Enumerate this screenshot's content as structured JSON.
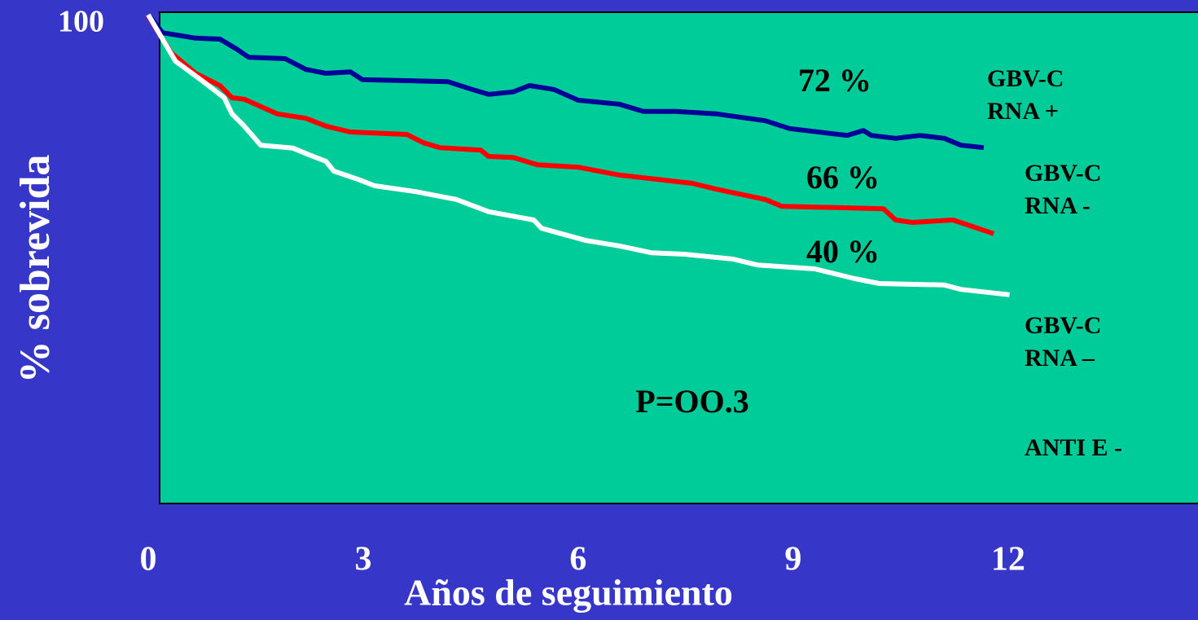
{
  "chart_data": {
    "type": "line",
    "xlabel": "Años de seguimiento",
    "ylabel": "% sobrevida",
    "xlim": [
      0,
      14.65
    ],
    "xticks": [
      0,
      3,
      6,
      9,
      12
    ],
    "ylim": [
      0,
      100
    ],
    "yticks": [
      100
    ],
    "grid": false,
    "annotations": [
      "72 %",
      "66 %",
      "40 %",
      "P=OO.3",
      "ANTI E -"
    ],
    "series": [
      {
        "name": "GBV-C\nRNA +",
        "color": "#000099",
        "x": [
          0,
          0.2,
          0.66,
          1.0,
          1.23,
          1.4,
          1.91,
          2.2,
          2.48,
          2.82,
          2.99,
          4.18,
          4.52,
          4.75,
          5.09,
          5.32,
          5.66,
          6.0,
          6.57,
          6.91,
          7.36,
          7.93,
          8.61,
          8.95,
          9.75,
          9.98,
          10.09,
          10.43,
          10.77,
          11.11,
          11.34,
          11.66
        ],
        "values": [
          100,
          96.3,
          95.2,
          95.0,
          93.0,
          91.3,
          91.0,
          88.8,
          88.0,
          88.3,
          86.7,
          86.3,
          84.7,
          83.7,
          84.2,
          85.5,
          84.7,
          82.5,
          81.7,
          80.2,
          80.2,
          79.7,
          78.3,
          76.7,
          75.3,
          76.3,
          75.3,
          74.7,
          75.3,
          74.7,
          73.3,
          72.8
        ]
      },
      {
        "name": "GBV-C\nRNA -",
        "color": "#ff0000",
        "x": [
          0,
          0.32,
          0.66,
          1.0,
          1.17,
          1.34,
          1.8,
          2.2,
          2.48,
          2.82,
          3.61,
          3.84,
          4.07,
          4.64,
          4.75,
          5.09,
          5.43,
          6.0,
          6.57,
          7.59,
          7.93,
          8.61,
          8.84,
          10.26,
          10.43,
          10.66,
          11.23,
          11.8
        ],
        "values": [
          99.7,
          92.2,
          88.0,
          85.5,
          83.0,
          82.7,
          79.7,
          78.8,
          77.2,
          76.0,
          75.5,
          73.8,
          72.8,
          72.3,
          71.0,
          70.8,
          69.3,
          68.8,
          67.2,
          65.5,
          64.3,
          62.2,
          60.8,
          60.3,
          58.0,
          57.5,
          58.0,
          55.2
        ]
      },
      {
        "name": "GBV-C\nRNA –",
        "color": "#ffffff",
        "x": [
          0,
          0.38,
          0.77,
          1.06,
          1.17,
          1.34,
          1.57,
          2.02,
          2.25,
          2.48,
          2.59,
          2.93,
          3.16,
          3.73,
          4.3,
          4.75,
          5.38,
          5.49,
          6.11,
          6.57,
          7.02,
          7.48,
          8.16,
          8.5,
          9.3,
          9.86,
          10.2,
          11.11,
          11.34,
          12.02
        ],
        "values": [
          100,
          90.5,
          86.3,
          83.0,
          79.7,
          77.2,
          73.3,
          72.7,
          71.3,
          70.0,
          68.0,
          66.3,
          65.0,
          63.8,
          62.2,
          59.7,
          58.0,
          56.3,
          53.8,
          52.7,
          51.3,
          51.0,
          50.0,
          48.8,
          48.0,
          46.0,
          45.0,
          44.7,
          43.8,
          42.7
        ]
      }
    ]
  }
}
